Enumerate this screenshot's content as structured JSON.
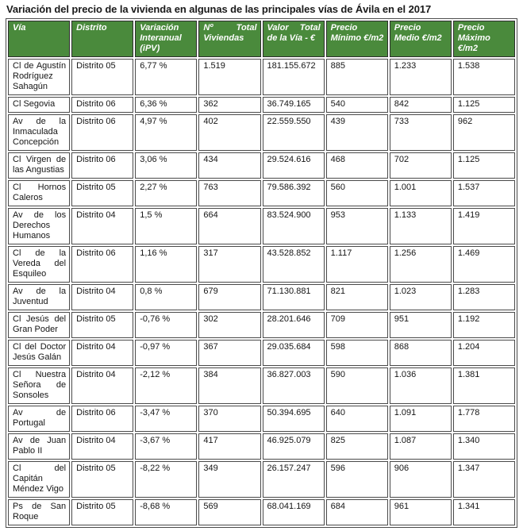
{
  "colors": {
    "header_bg": "#4a8a3c",
    "header_text": "#ffffff",
    "border_color": "#4a4a4a",
    "body_text": "#151515",
    "title_color": "#1a1a1a"
  },
  "chart_data": {
    "type": "table",
    "title": "Variación del precio de la vivienda en algunas de las principales vías de Ávila en el 2017",
    "legend_position": "none",
    "grid": true,
    "columns": [
      {
        "key": "via",
        "label": "Vía"
      },
      {
        "key": "distrito",
        "label": "Distrito"
      },
      {
        "key": "variacion_interanual_ipv",
        "label": "Variación Interanual (iPV)"
      },
      {
        "key": "num_total_viviendas",
        "label": "Nº Total Viviendas"
      },
      {
        "key": "valor_total_via_eur",
        "label": "Valor Total de la Vía - €"
      },
      {
        "key": "precio_minimo_eur_m2",
        "label": "Precio Mínimo €/m2"
      },
      {
        "key": "precio_medio_eur_m2",
        "label": "Precio Medio €/m2"
      },
      {
        "key": "precio_maximo_eur_m2",
        "label": "Precio Máximo €/m2"
      }
    ],
    "rows": [
      [
        "Cl de Agustín Rodríguez Sahagún",
        "Distrito 05",
        "6,77 %",
        "1.519",
        "181.155.672",
        "885",
        "1.233",
        "1.538"
      ],
      [
        "Cl Segovia",
        "Distrito 06",
        "6,36 %",
        "362",
        "36.749.165",
        "540",
        "842",
        "1.125"
      ],
      [
        "Av de la Inmaculada Concepción",
        "Distrito 06",
        "4,97 %",
        "402",
        "22.559.550",
        "439",
        "733",
        "962"
      ],
      [
        "Cl Virgen de las Angustias",
        "Distrito 06",
        "3,06 %",
        "434",
        "29.524.616",
        "468",
        "702",
        "1.125"
      ],
      [
        "Cl Hornos Caleros",
        "Distrito 05",
        "2,27 %",
        "763",
        "79.586.392",
        "560",
        "1.001",
        "1.537"
      ],
      [
        "Av de los Derechos Humanos",
        "Distrito 04",
        "1,5 %",
        "664",
        "83.524.900",
        "953",
        "1.133",
        "1.419"
      ],
      [
        "Cl de la Vereda del Esquileo",
        "Distrito 06",
        "1,16 %",
        "317",
        "43.528.852",
        "1.117",
        "1.256",
        "1.469"
      ],
      [
        "Av de la Juventud",
        "Distrito 04",
        "0,8 %",
        "679",
        "71.130.881",
        "821",
        "1.023",
        "1.283"
      ],
      [
        "Cl Jesús del Gran Poder",
        "Distrito 05",
        "-0,76 %",
        "302",
        "28.201.646",
        "709",
        "951",
        "1.192"
      ],
      [
        "Cl del Doctor Jesús Galán",
        "Distrito 04",
        "-0,97 %",
        "367",
        "29.035.684",
        "598",
        "868",
        "1.204"
      ],
      [
        "Cl Nuestra Señora de Sonsoles",
        "Distrito 04",
        "-2,12 %",
        "384",
        "36.827.003",
        "590",
        "1.036",
        "1.381"
      ],
      [
        "Av de Portugal",
        "Distrito 06",
        "-3,47 %",
        "370",
        "50.394.695",
        "640",
        "1.091",
        "1.778"
      ],
      [
        "Av de Juan Pablo II",
        "Distrito 04",
        "-3,67 %",
        "417",
        "46.925.079",
        "825",
        "1.087",
        "1.340"
      ],
      [
        "Cl del Capitán Méndez Vigo",
        "Distrito 05",
        "-8,22 %",
        "349",
        "26.157.247",
        "596",
        "906",
        "1.347"
      ],
      [
        "Ps de San Roque",
        "Distrito 05",
        "-8,68 %",
        "569",
        "68.041.169",
        "684",
        "961",
        "1.341"
      ]
    ]
  }
}
